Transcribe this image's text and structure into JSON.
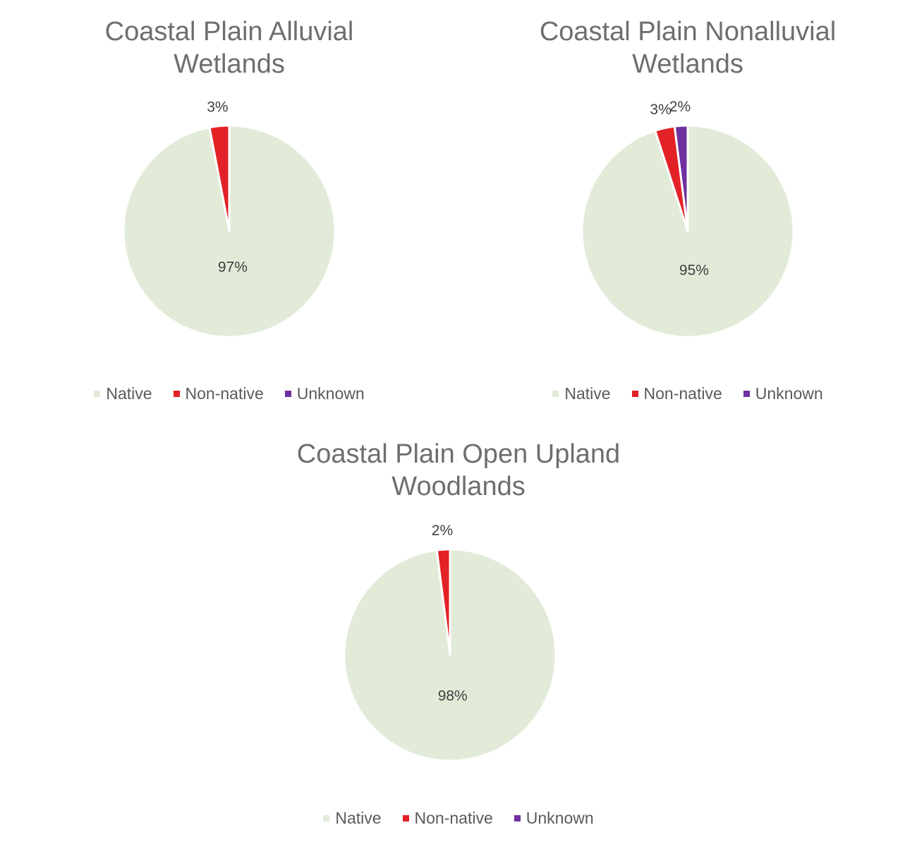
{
  "chart_data": [
    {
      "type": "pie",
      "title_lines": [
        "Coastal Plain Alluvial",
        "Wetlands"
      ],
      "categories": [
        "Native",
        "Non-native",
        "Unknown"
      ],
      "values": [
        97,
        3,
        0
      ],
      "labels": [
        "97%",
        "3%",
        ""
      ],
      "legend": [
        "Native",
        "Non-native",
        "Unknown"
      ],
      "legend_position": "bottom"
    },
    {
      "type": "pie",
      "title_lines": [
        "Coastal Plain Nonalluvial",
        "Wetlands"
      ],
      "categories": [
        "Native",
        "Non-native",
        "Unknown"
      ],
      "values": [
        95,
        3,
        2
      ],
      "labels": [
        "95%",
        "3%",
        "2%"
      ],
      "legend": [
        "Native",
        "Non-native",
        "Unknown"
      ],
      "legend_position": "bottom"
    },
    {
      "type": "pie",
      "title_lines": [
        "Coastal Plain Open Upland",
        "Woodlands"
      ],
      "categories": [
        "Native",
        "Non-native",
        "Unknown"
      ],
      "values": [
        98,
        2,
        0
      ],
      "labels": [
        "98%",
        "2%",
        ""
      ],
      "legend": [
        "Native",
        "Non-native",
        "Unknown"
      ],
      "legend_position": "bottom"
    }
  ],
  "colors": {
    "Native": "#e2ebd8",
    "Non-native": "#e32227",
    "Unknown": "#7030a0",
    "separator": "#ffffff"
  }
}
